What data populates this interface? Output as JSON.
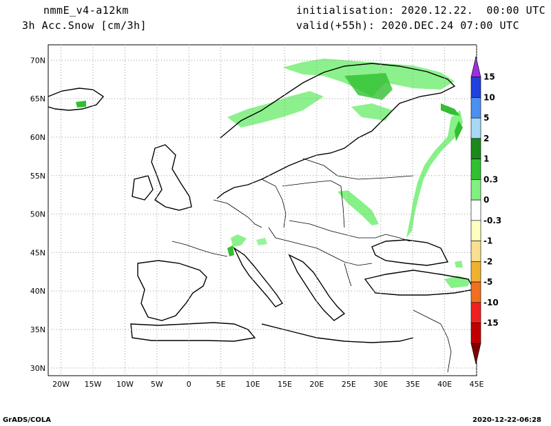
{
  "header": {
    "model": "nmmE_v4-a12km",
    "field": "3h Acc.Snow [cm/3h]",
    "init": "initialisation: 2020.12.22.  00:00 UTC",
    "valid": "valid(+55h): 2020.DEC.24 07:00 UTC"
  },
  "footer": {
    "left": "GrADS/COLA",
    "right": "2020-12-22-06:28"
  },
  "map": {
    "lon_range": [
      -22,
      45
    ],
    "lat_range": [
      29,
      72
    ],
    "lat_ticks": [
      30,
      35,
      40,
      45,
      50,
      55,
      60,
      65,
      70
    ],
    "lat_labels": [
      "30N",
      "35N",
      "40N",
      "45N",
      "50N",
      "55N",
      "60N",
      "65N",
      "70N"
    ],
    "lon_ticks": [
      -20,
      -15,
      -10,
      -5,
      0,
      5,
      10,
      15,
      20,
      25,
      30,
      35,
      40,
      45
    ],
    "lon_labels": [
      "20W",
      "15W",
      "10W",
      "5W",
      "0",
      "5E",
      "10E",
      "15E",
      "20E",
      "25E",
      "30E",
      "35E",
      "40E",
      "45E"
    ],
    "grid": true
  },
  "colorbar": {
    "labels": [
      "15",
      "10",
      "5",
      "2",
      "1",
      "0.3",
      "0",
      "-0.3",
      "-1",
      "-2",
      "-5",
      "-10",
      "-15"
    ],
    "colors": [
      "#9b30e0",
      "#2040e0",
      "#4a90f0",
      "#a8d8f8",
      "#1a8a1a",
      "#30c030",
      "#80f080",
      "#ffffff",
      "#ffffc0",
      "#f8e090",
      "#f0b030",
      "#f07020",
      "#f02020",
      "#c00000",
      "#800000"
    ]
  }
}
